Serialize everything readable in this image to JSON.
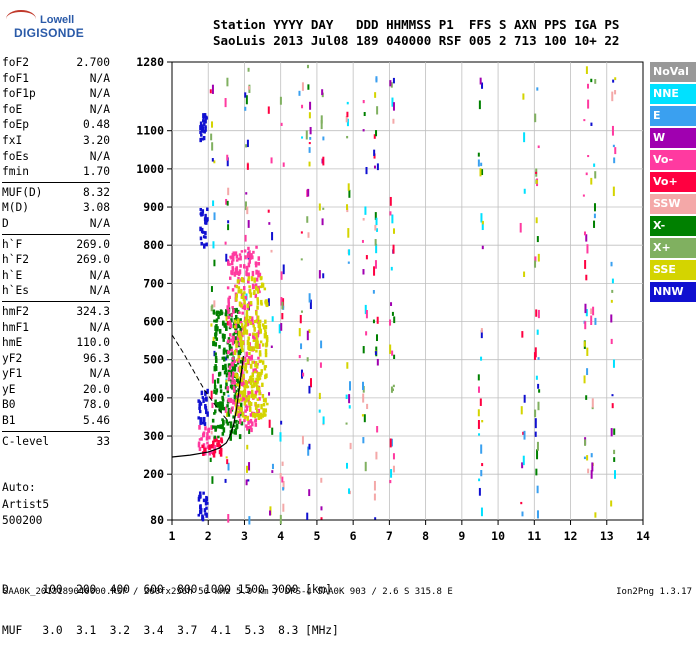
{
  "logo": {
    "line1": "Lowell",
    "line2": "DIGISONDE"
  },
  "header": {
    "line1": "Station YYYY DAY   DDD HHMMSS P1  FFS S AXN PPS IGA PS",
    "line2": "SaoLuis 2013 Jul08 189 040000 RSF 005 2 713 100 10+ 22"
  },
  "params": [
    {
      "k": "foF2",
      "v": "2.700"
    },
    {
      "k": "foF1",
      "v": "N/A"
    },
    {
      "k": "foF1p",
      "v": "N/A"
    },
    {
      "k": "foE",
      "v": "N/A"
    },
    {
      "k": "foEp",
      "v": "0.48"
    },
    {
      "k": "fxI",
      "v": "3.20"
    },
    {
      "k": "foEs",
      "v": "N/A"
    },
    {
      "k": "fmin",
      "v": "1.70"
    },
    {
      "k": "MUF(D)",
      "v": "8.32"
    },
    {
      "k": "M(D)",
      "v": "3.08"
    },
    {
      "k": "D",
      "v": "N/A"
    },
    {
      "k": "h`F",
      "v": "269.0"
    },
    {
      "k": "h`F2",
      "v": "269.0"
    },
    {
      "k": "h`E",
      "v": "N/A"
    },
    {
      "k": "h`Es",
      "v": "N/A"
    },
    {
      "k": "hmF2",
      "v": "324.3"
    },
    {
      "k": "hmF1",
      "v": "N/A"
    },
    {
      "k": "hmE",
      "v": "110.0"
    },
    {
      "k": "yF2",
      "v": "96.3"
    },
    {
      "k": "yF1",
      "v": "N/A"
    },
    {
      "k": "yE",
      "v": "20.0"
    },
    {
      "k": "B0",
      "v": "78.0"
    },
    {
      "k": "B1",
      "v": "5.46"
    },
    {
      "k": "C-level",
      "v": "33"
    }
  ],
  "param_separators_after": [
    7,
    10,
    14,
    22
  ],
  "auto": {
    "line1": "Auto:",
    "line2": "Artist5",
    "line3": "500200"
  },
  "chart_data": {
    "type": "scatter",
    "title": "",
    "xlabel": "",
    "ylabel": "",
    "xlim": [
      1,
      14
    ],
    "ylim": [
      80,
      1280
    ],
    "x_ticks": [
      "1",
      "2",
      "3",
      "4",
      "5",
      "6",
      "7",
      "8",
      "9",
      "10",
      "11",
      "12",
      "13",
      "14"
    ],
    "y_ticks": [
      "80",
      "200",
      "300",
      "400",
      "500",
      "600",
      "700",
      "800",
      "900",
      "1000",
      "1100",
      "1280"
    ],
    "grid": true,
    "legend_position": "right",
    "legend": [
      {
        "label": "NoVal",
        "color": "#999999"
      },
      {
        "label": "NNE",
        "color": "#00e1ff"
      },
      {
        "label": "E",
        "color": "#3aa0f0"
      },
      {
        "label": "W",
        "color": "#a000b0"
      },
      {
        "label": "Vo-",
        "color": "#ff3aa0"
      },
      {
        "label": "Vo+",
        "color": "#ff0040"
      },
      {
        "label": "SSW",
        "color": "#f4a8a8"
      },
      {
        "label": "X-",
        "color": "#008000"
      },
      {
        "label": "X+",
        "color": "#80b060"
      },
      {
        "label": "SSE",
        "color": "#d4d400"
      },
      {
        "label": "NNW",
        "color": "#1010d0"
      }
    ],
    "profile_curve": [
      {
        "x": 1.0,
        "y": 245
      },
      {
        "x": 1.5,
        "y": 250
      },
      {
        "x": 2.0,
        "y": 258
      },
      {
        "x": 2.3,
        "y": 268
      },
      {
        "x": 2.5,
        "y": 282
      },
      {
        "x": 2.6,
        "y": 300
      },
      {
        "x": 2.7,
        "y": 330
      },
      {
        "x": 2.78,
        "y": 370
      },
      {
        "x": 2.85,
        "y": 420
      },
      {
        "x": 2.92,
        "y": 470
      },
      {
        "x": 2.97,
        "y": 510
      }
    ],
    "extrapolated_profile": [
      {
        "x": 1.0,
        "y": 565
      },
      {
        "x": 1.3,
        "y": 520
      },
      {
        "x": 1.6,
        "y": 470
      },
      {
        "x": 1.9,
        "y": 420
      },
      {
        "x": 2.2,
        "y": 380
      },
      {
        "x": 2.45,
        "y": 350
      },
      {
        "x": 2.6,
        "y": 335
      }
    ],
    "echo_clusters": [
      {
        "x": [
          1.7,
          2.2
        ],
        "y": [
          260,
          330
        ],
        "color": "#ff3aa0"
      },
      {
        "x": [
          1.8,
          2.4
        ],
        "y": [
          255,
          300
        ],
        "color": "#ff0040"
      },
      {
        "x": [
          2.1,
          2.9
        ],
        "y": [
          300,
          640
        ],
        "color": "#008000"
      },
      {
        "x": [
          2.5,
          3.4
        ],
        "y": [
          320,
          800
        ],
        "color": "#ff3aa0"
      },
      {
        "x": [
          2.7,
          3.6
        ],
        "y": [
          350,
          720
        ],
        "color": "#d4d400"
      },
      {
        "x": [
          1.7,
          1.95
        ],
        "y": [
          330,
          430
        ],
        "color": "#1010d0"
      },
      {
        "x": [
          1.75,
          1.95
        ],
        "y": [
          800,
          900
        ],
        "color": "#1010d0"
      },
      {
        "x": [
          1.75,
          1.95
        ],
        "y": [
          1080,
          1150
        ],
        "color": "#1010d0"
      },
      {
        "x": [
          1.7,
          1.95
        ],
        "y": [
          85,
          160
        ],
        "color": "#1010d0"
      }
    ]
  },
  "dmuf": {
    "line1": "D     100  200  400  600  800 1000 1500 3000 [km]",
    "line2": "MUF   3.0  3.1  3.2  3.4  3.7  4.1  5.3  8.3 [MHz]"
  },
  "footer": {
    "left": "SAA0K_2013189040000.RSF / 260fx256h 50 kHz 5.0 km / DPS-4 SAA0K 903 / 2.6 S 315.8 E",
    "right": "Ion2Png 1.3.17"
  }
}
